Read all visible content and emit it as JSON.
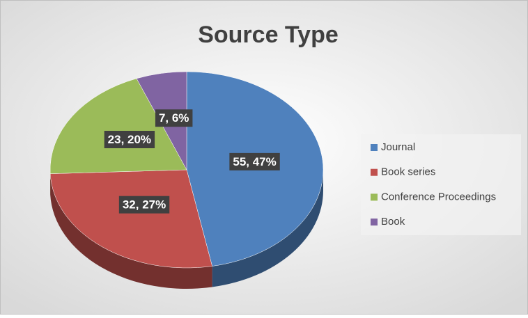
{
  "chart_data": {
    "type": "pie",
    "title": "Source Type",
    "categories": [
      "Journal",
      "Book series",
      "Conference Proceedings",
      "Book"
    ],
    "values": [
      55,
      32,
      23,
      7
    ],
    "value_labels": [
      "55, 47%",
      "32, 27%",
      "23, 20%",
      "7, 6%"
    ],
    "colors": [
      "#4f81bd",
      "#c0504d",
      "#9bbb59",
      "#8064a2"
    ],
    "legend": "right"
  }
}
